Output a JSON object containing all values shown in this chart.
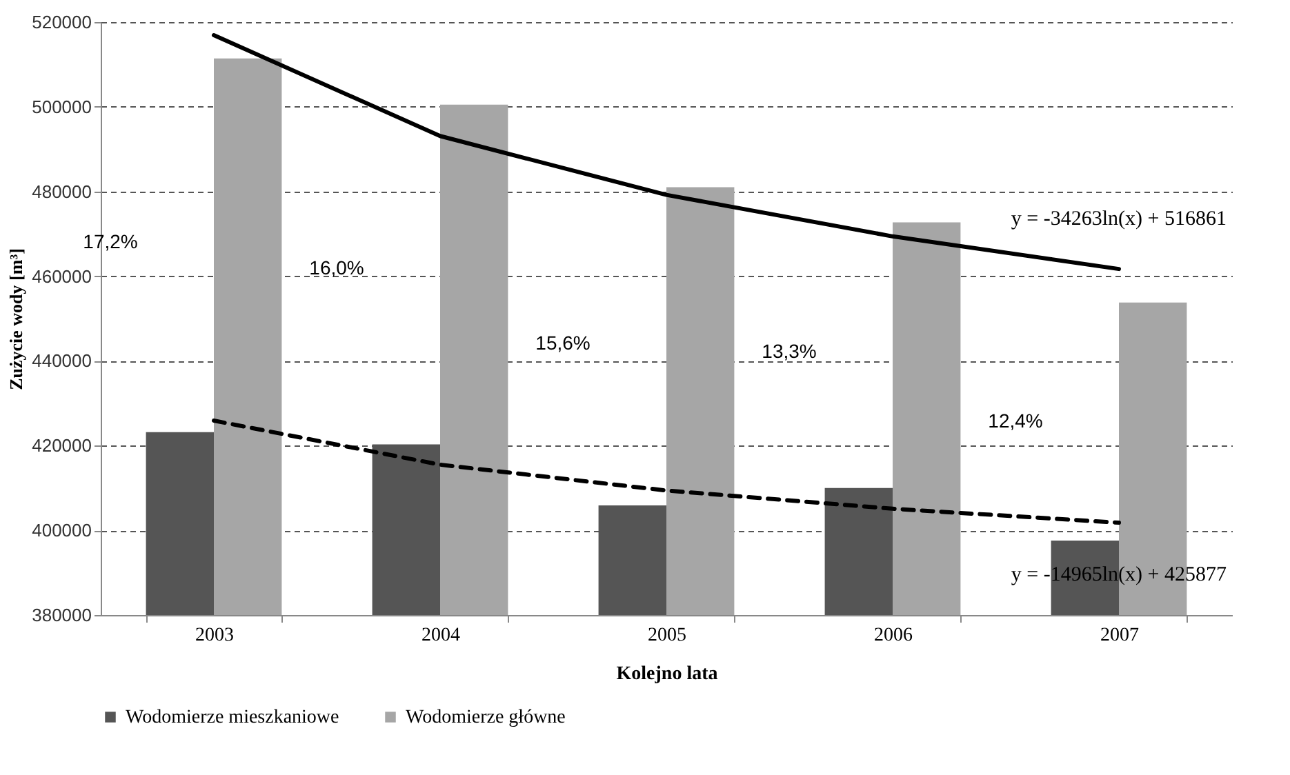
{
  "chart_data": {
    "type": "bar",
    "xlabel": "Kolejno lata",
    "ylabel": "Zużycie wody [m³]",
    "categories": [
      "2003",
      "2004",
      "2005",
      "2006",
      "2007"
    ],
    "series": [
      {
        "name": "Wodomierze mieszkaniowe",
        "color": "#555555",
        "values": [
          423200,
          420300,
          405900,
          410000,
          397600
        ]
      },
      {
        "name": "Wodomierze główne",
        "color": "#a6a6a6",
        "values": [
          511400,
          500500,
          481000,
          472700,
          453800
        ]
      },
      {
        "type": "line",
        "color": "#000000",
        "line_style": "solid",
        "values": [
          516900,
          493100,
          479200,
          469400,
          461700
        ]
      },
      {
        "type": "line",
        "color": "#000000",
        "line_style": "dashed",
        "values": [
          425900,
          415500,
          409400,
          405100,
          401800
        ]
      }
    ],
    "ylim": [
      380000,
      520000
    ],
    "yticks": [
      380000,
      400000,
      420000,
      440000,
      460000,
      480000,
      500000,
      520000
    ],
    "grid": "y",
    "legend": "bottom",
    "annotations": [
      "17,2%",
      "16,0%",
      "15,6%",
      "13,3%",
      "12,4%",
      "y = -34263ln(x) + 516861",
      "y = -14965ln(x) + 425877"
    ]
  }
}
